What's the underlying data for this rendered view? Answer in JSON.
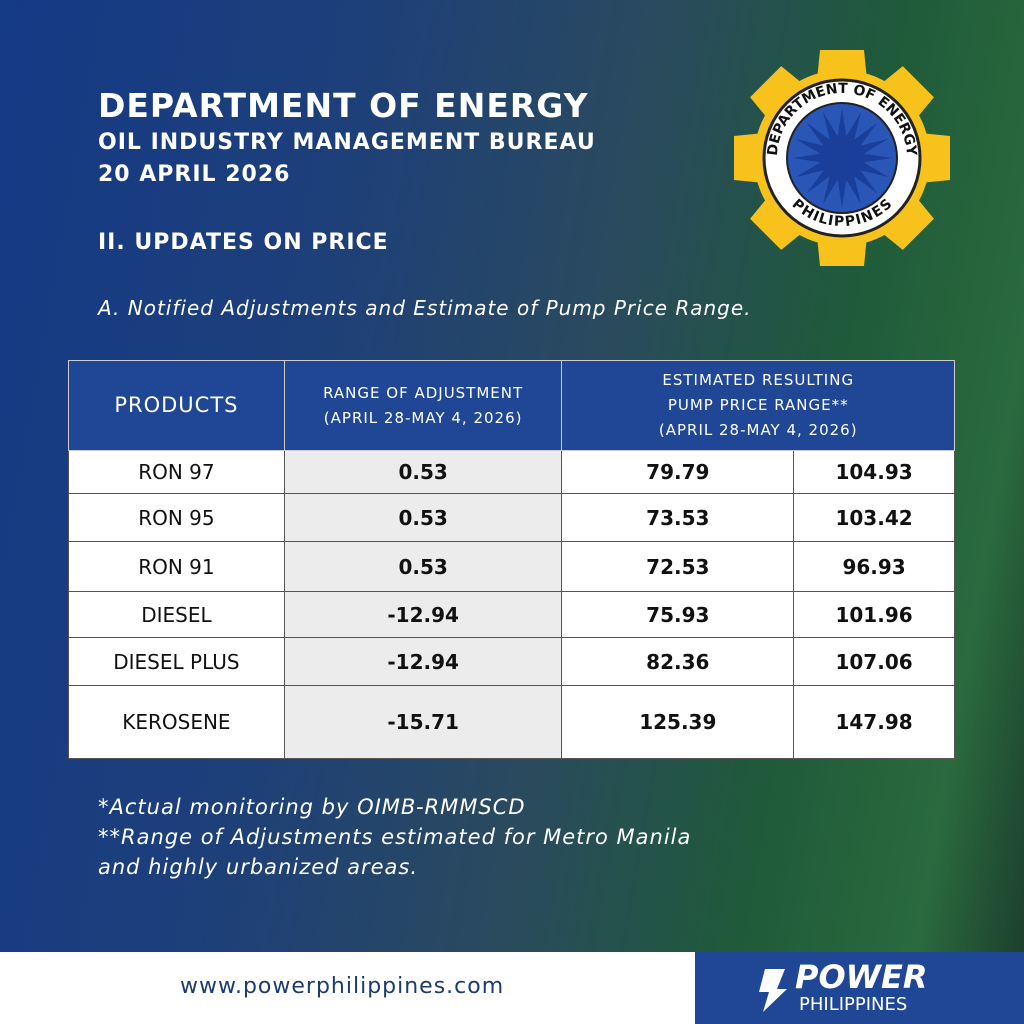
{
  "header": {
    "title": "DEPARTMENT OF ENERGY",
    "subtitle": "OIL INDUSTRY MANAGEMENT BUREAU",
    "date": "20 APRIL 2026"
  },
  "seal": {
    "top": "DEPARTMENT OF ENERGY",
    "bottom": "PHILIPPINES"
  },
  "section": "II. UPDATES ON PRICE",
  "subsection": "A. Notified Adjustments and Estimate of Pump Price Range.",
  "table": {
    "headers": [
      [
        "PRODUCTS"
      ],
      [
        "RANGE OF ADJUSTMENT",
        "(APRIL 28-MAY 4, 2026)"
      ],
      [
        "ESTIMATED RESULTING",
        "PUMP PRICE RANGE**",
        "(APRIL 28-MAY 4, 2026)"
      ]
    ],
    "rows": [
      [
        "RON 97",
        0.53,
        79.79,
        104.93
      ],
      [
        "RON 95",
        0.53,
        73.53,
        103.42
      ],
      [
        "RON 91",
        0.53,
        72.53,
        96.93
      ],
      [
        "DIESEL",
        -12.94,
        75.93,
        101.96
      ],
      [
        "DIESEL PLUS",
        -12.94,
        82.36,
        107.06
      ],
      [
        "KEROSENE",
        -15.71,
        125.39,
        147.98
      ]
    ]
  },
  "notes": [
    "*Actual monitoring by OIMB-RMMSCD",
    "**Range of Adjustments estimated for Metro Manila",
    "and highly urbanized areas."
  ],
  "footer": {
    "url": "www.powerphilippines.com",
    "brand": "POWER",
    "brand_sub": "PHILIPPINES"
  }
}
